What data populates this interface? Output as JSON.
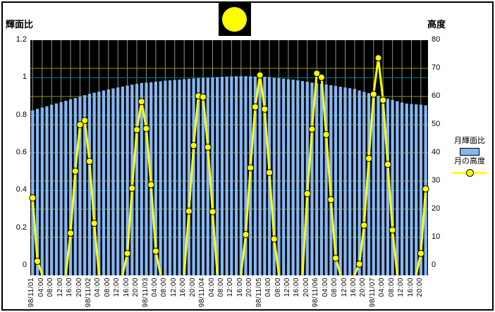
{
  "titles": {
    "left_axis_title": "輝面比",
    "right_axis_title": "高度"
  },
  "legend": {
    "bar_label": "月輝面比",
    "line_label": "月の高度"
  },
  "icons": {
    "moon": "full-moon-icon"
  },
  "colors": {
    "plot_background": "#000000",
    "bar_fill": "#85b7f3",
    "line_color": "#ffff00",
    "marker_fill": "#ffff00",
    "marker_stroke": "#000000",
    "vertical_grid": "#909090",
    "left_grid": "#008080",
    "right_grid": "#999900",
    "text": "#000000"
  },
  "chart_data": {
    "type": "bar",
    "title": "",
    "x_interval_hours": 2,
    "x_labels": [
      "98/11/01",
      "04:00",
      "08:00",
      "12:00",
      "16:00",
      "20:00",
      "98/11/02",
      "04:00",
      "08:00",
      "12:00",
      "16:00",
      "20:00",
      "98/11/03",
      "04:00",
      "08:00",
      "12:00",
      "16:00",
      "20:00",
      "98/11/04",
      "04:00",
      "08:00",
      "12:00",
      "16:00",
      "20:00",
      "98/11/05",
      "04:00",
      "08:00",
      "12:00",
      "16:00",
      "20:00",
      "98/11/06",
      "04:00",
      "08:00",
      "12:00",
      "16:00",
      "20:00",
      "98/11/07",
      "04:00",
      "08:00",
      "12:00",
      "16:00",
      "20:00"
    ],
    "left_axis": {
      "label": "輝面比",
      "min": 0,
      "max": 1.2,
      "tick_labels": [
        "1.2",
        "1",
        "0.8",
        "0.6",
        "0.4",
        "0.2",
        "0"
      ],
      "tick_values": [
        1.2,
        1,
        0.8,
        0.6,
        0.4,
        0.2,
        0
      ],
      "gridline_values": [
        0.2,
        0.4,
        0.6,
        0.8,
        1.0
      ]
    },
    "right_axis": {
      "label": "高度",
      "min": 0,
      "max": 80,
      "tick_labels": [
        "80",
        "70",
        "60",
        "50",
        "40",
        "30",
        "20",
        "10",
        "0"
      ],
      "tick_values": [
        80,
        70,
        60,
        50,
        40,
        30,
        20,
        10,
        0
      ],
      "gridline_values": [
        10,
        20,
        30,
        40,
        50,
        60,
        70
      ]
    },
    "legend_position": "right",
    "grid": true,
    "series": [
      {
        "name": "月輝面比",
        "type": "bar",
        "axis": "left",
        "color": "#85b7f3",
        "values": [
          0.826,
          0.834,
          0.841,
          0.848,
          0.856,
          0.863,
          0.87,
          0.877,
          0.885,
          0.892,
          0.899,
          0.907,
          0.914,
          0.92,
          0.926,
          0.932,
          0.938,
          0.943,
          0.948,
          0.953,
          0.958,
          0.963,
          0.967,
          0.972,
          0.974,
          0.976,
          0.979,
          0.981,
          0.984,
          0.986,
          0.988,
          0.99,
          0.992,
          0.994,
          0.996,
          0.998,
          0.999,
          1.0,
          1.002,
          1.003,
          1.005,
          1.006,
          1.007,
          1.008,
          1.008,
          1.008,
          1.007,
          1.006,
          1.005,
          1.005,
          1.003,
          1.0,
          0.998,
          0.995,
          0.992,
          0.99,
          0.986,
          0.982,
          0.978,
          0.974,
          0.97,
          0.967,
          0.964,
          0.96,
          0.956,
          0.952,
          0.948,
          0.944,
          0.94,
          0.932,
          0.925,
          0.918,
          0.911,
          0.904,
          0.897,
          0.888,
          0.882,
          0.875,
          0.868,
          0.862,
          0.86,
          0.858,
          0.856,
          0.853
        ]
      },
      {
        "name": "月の高度",
        "type": "line",
        "axis": "right",
        "color": "#ffff00",
        "values": [
          24,
          1.5,
          -6,
          null,
          null,
          null,
          null,
          -6,
          11.5,
          33.5,
          50,
          51.5,
          37,
          15,
          -6,
          null,
          null,
          null,
          null,
          -6,
          4.3,
          27.4,
          48.2,
          58.2,
          48.6,
          28.7,
          5.1,
          -6,
          null,
          null,
          null,
          null,
          -6,
          19.3,
          42.6,
          60.2,
          59.8,
          42,
          19.1,
          -6,
          null,
          null,
          null,
          null,
          -6,
          11,
          34.7,
          56.3,
          67.6,
          55.5,
          33,
          9.4,
          -6,
          null,
          null,
          null,
          null,
          -6,
          25.5,
          48.4,
          68.2,
          66.8,
          46.5,
          23.4,
          2.6,
          -6,
          null,
          null,
          -6,
          0.5,
          14.3,
          38,
          60.8,
          73.7,
          58.7,
          35.9,
          12.6,
          -6,
          null,
          null,
          null,
          -6,
          4.3,
          27.2
        ]
      }
    ]
  }
}
